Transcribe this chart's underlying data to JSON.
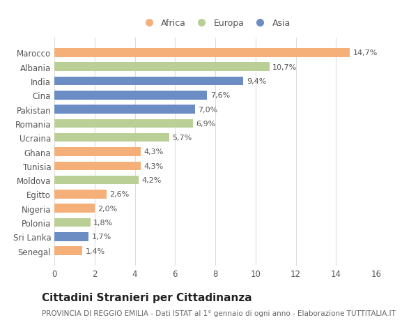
{
  "categories": [
    "Marocco",
    "Albania",
    "India",
    "Cina",
    "Pakistan",
    "Romania",
    "Ucraina",
    "Ghana",
    "Tunisia",
    "Moldova",
    "Egitto",
    "Nigeria",
    "Polonia",
    "Sri Lanka",
    "Senegal"
  ],
  "values": [
    14.7,
    10.7,
    9.4,
    7.6,
    7.0,
    6.9,
    5.7,
    4.3,
    4.3,
    4.2,
    2.6,
    2.0,
    1.8,
    1.7,
    1.4
  ],
  "labels": [
    "14,7%",
    "10,7%",
    "9,4%",
    "7,6%",
    "7,0%",
    "6,9%",
    "5,7%",
    "4,3%",
    "4,3%",
    "4,2%",
    "2,6%",
    "2,0%",
    "1,8%",
    "1,7%",
    "1,4%"
  ],
  "continents": [
    "Africa",
    "Europa",
    "Asia",
    "Asia",
    "Asia",
    "Europa",
    "Europa",
    "Africa",
    "Africa",
    "Europa",
    "Africa",
    "Africa",
    "Europa",
    "Asia",
    "Africa"
  ],
  "colors": {
    "Africa": "#F5B07A",
    "Europa": "#BACF96",
    "Asia": "#6B8DC4"
  },
  "legend_labels": [
    "Africa",
    "Europa",
    "Asia"
  ],
  "xlim": [
    0,
    16
  ],
  "xticks": [
    0,
    2,
    4,
    6,
    8,
    10,
    12,
    14,
    16
  ],
  "title": "Cittadini Stranieri per Cittadinanza",
  "subtitle": "PROVINCIA DI REGGIO EMILIA - Dati ISTAT al 1° gennaio di ogni anno - Elaborazione TUTTITALIA.IT",
  "background_color": "#ffffff",
  "bar_height": 0.62,
  "title_fontsize": 11,
  "subtitle_fontsize": 7.5,
  "label_fontsize": 8,
  "tick_fontsize": 8.5,
  "legend_fontsize": 9
}
